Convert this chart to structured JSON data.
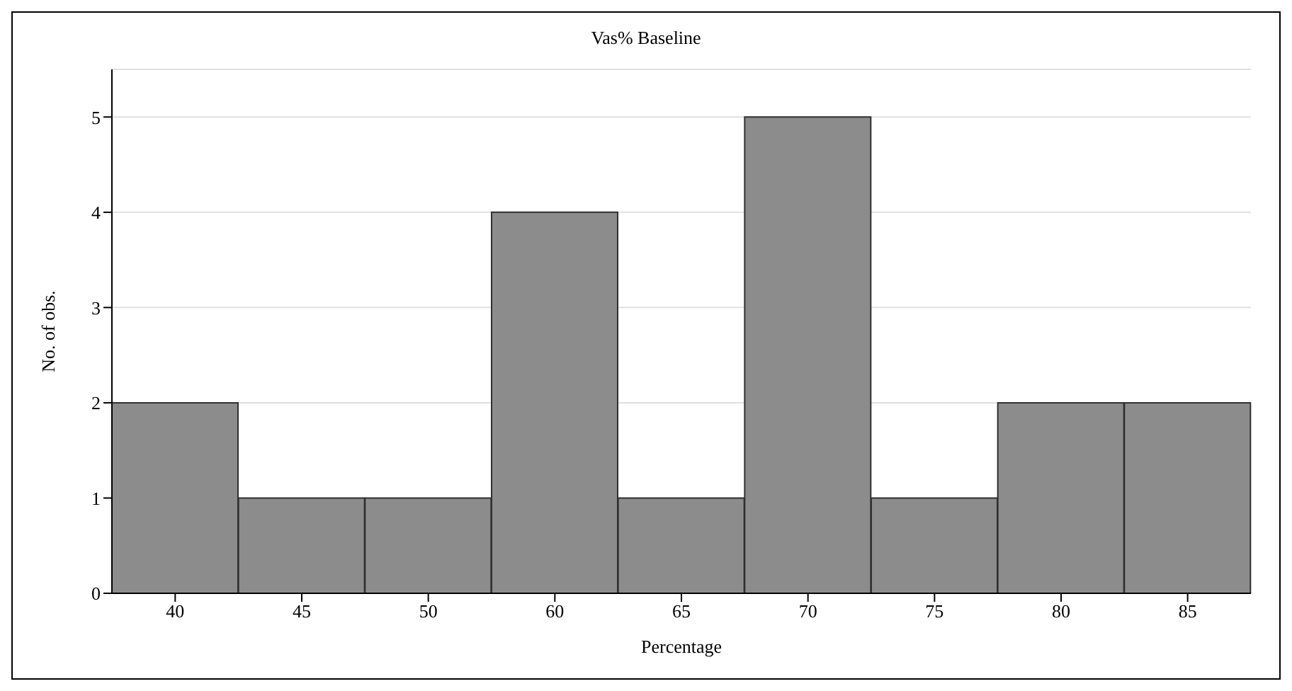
{
  "chart_data": {
    "type": "bar",
    "title": "Vas% Baseline",
    "xlabel": "Percentage",
    "ylabel": "No. of obs.",
    "categories": [
      "40",
      "45",
      "50",
      "60",
      "65",
      "70",
      "75",
      "80",
      "85"
    ],
    "values": [
      2,
      1,
      1,
      4,
      1,
      5,
      1,
      2,
      2
    ],
    "color": "#8c8c8c",
    "ylim": [
      0,
      5.5
    ],
    "yticks": [
      0,
      1,
      2,
      3,
      4,
      5
    ],
    "grid": "y"
  }
}
